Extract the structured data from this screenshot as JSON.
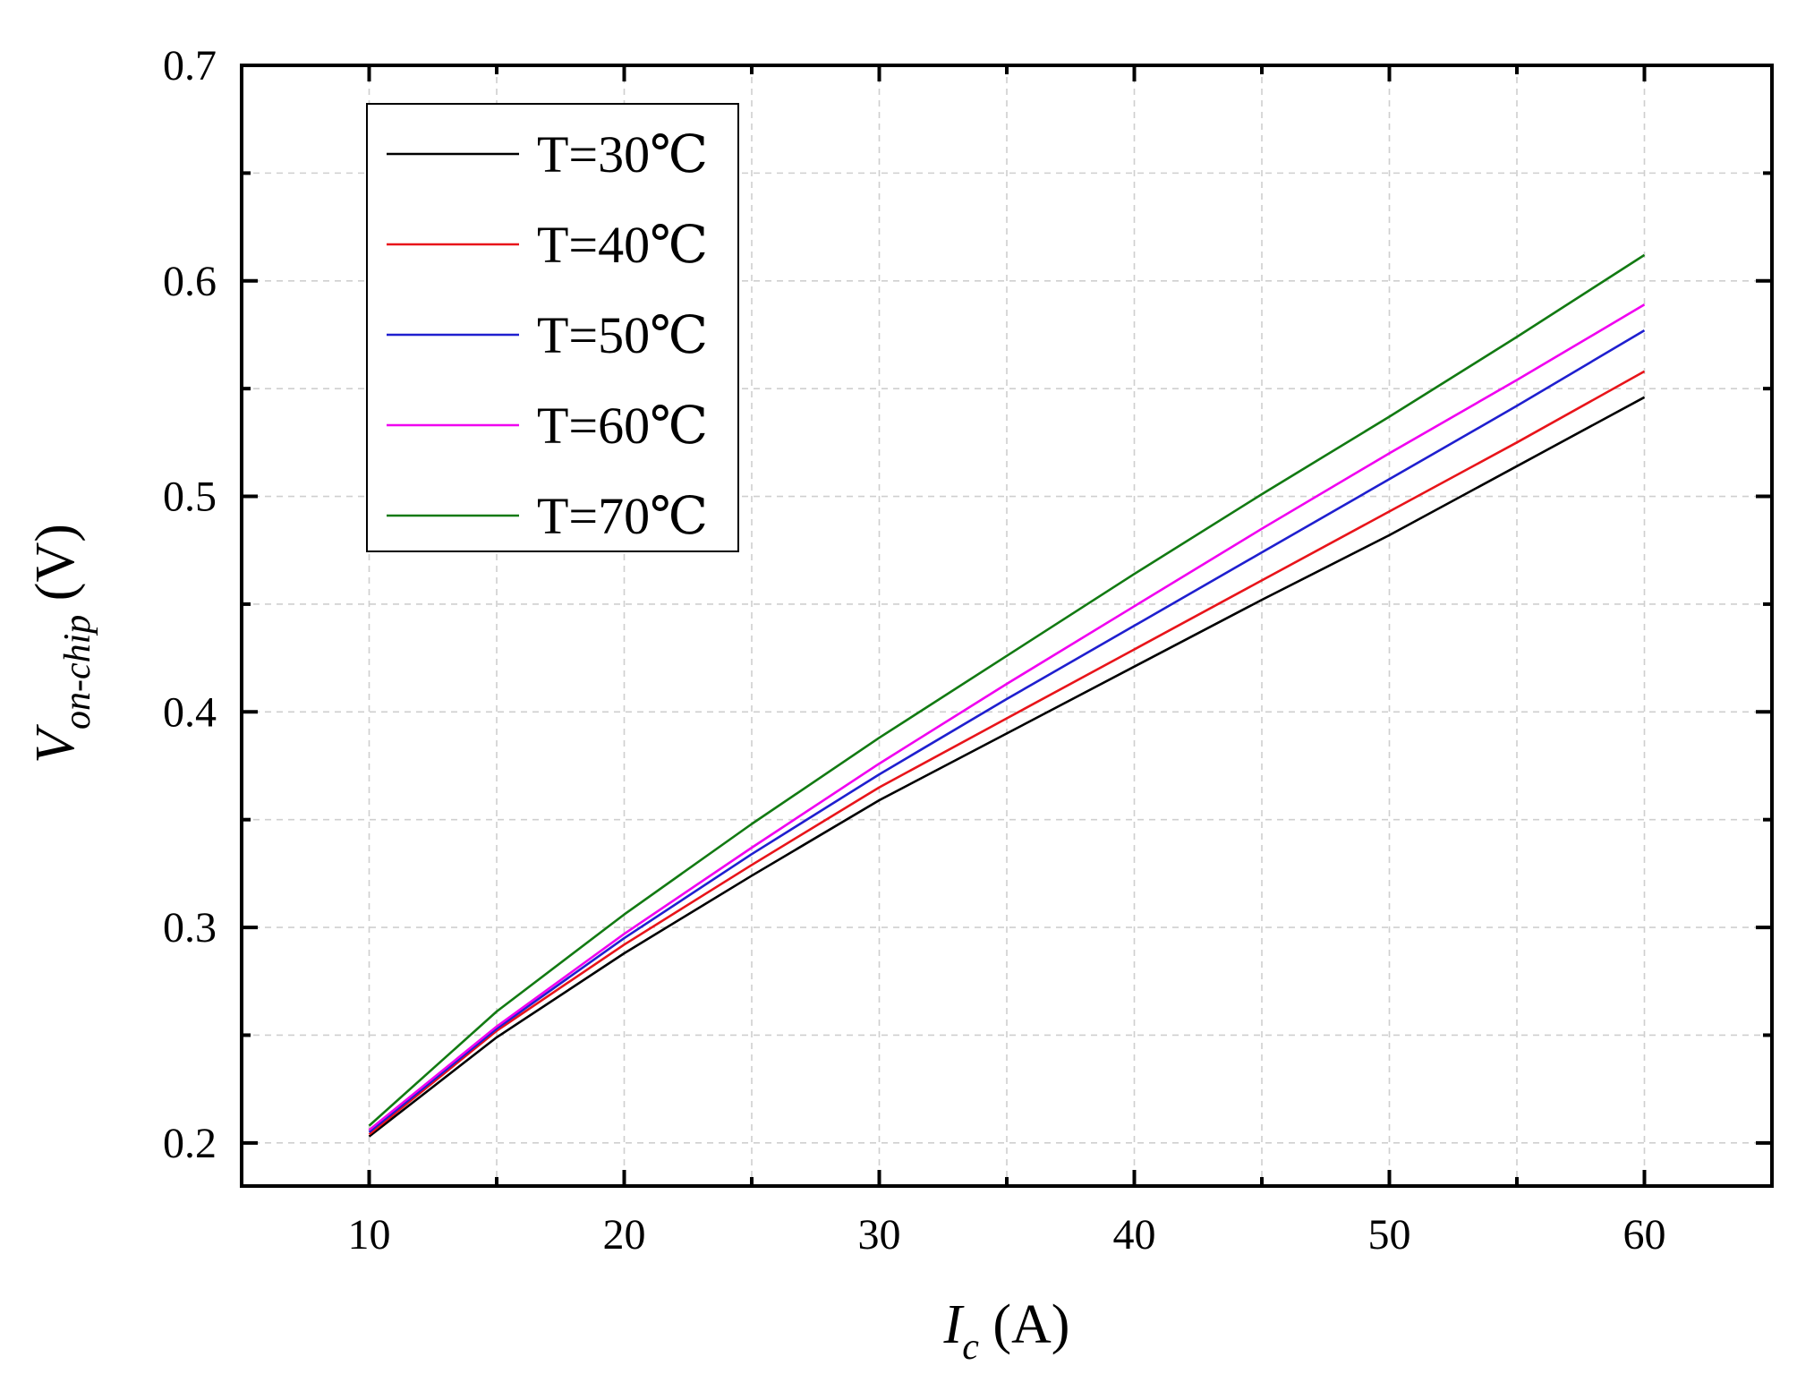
{
  "chart_data": {
    "type": "line",
    "xlabel": {
      "main": "I",
      "sub": "c",
      "unit": " (A)"
    },
    "ylabel": {
      "main": "V",
      "sub": "on-chip",
      "unit": " (V)"
    },
    "xlim": [
      5,
      65
    ],
    "ylim": [
      0.18,
      0.7
    ],
    "x_ticks": [
      10,
      20,
      30,
      40,
      50,
      60
    ],
    "x_tick_labels": [
      "10",
      "20",
      "30",
      "40",
      "50",
      "60"
    ],
    "x_minor_ticks": [
      15,
      25,
      35,
      45,
      55
    ],
    "y_ticks": [
      0.2,
      0.3,
      0.4,
      0.5,
      0.6,
      0.7
    ],
    "y_tick_labels": [
      "0.2",
      "0.3",
      "0.4",
      "0.5",
      "0.6",
      "0.7"
    ],
    "y_minor_ticks": [
      0.25,
      0.35,
      0.45,
      0.55,
      0.65
    ],
    "grid": true,
    "legend_position": "top-left",
    "x": [
      10,
      15,
      20,
      25,
      30,
      35,
      40,
      45,
      50,
      55,
      60
    ],
    "series": [
      {
        "name": "T=30℃",
        "color": "#000000",
        "values": [
          0.203,
          0.249,
          0.288,
          0.324,
          0.359,
          0.39,
          0.421,
          0.452,
          0.482,
          0.514,
          0.546
        ]
      },
      {
        "name": "T=40℃",
        "color": "#e8141a",
        "values": [
          0.204,
          0.252,
          0.292,
          0.329,
          0.365,
          0.397,
          0.429,
          0.461,
          0.493,
          0.525,
          0.558
        ]
      },
      {
        "name": "T=50℃",
        "color": "#1f1fcf",
        "values": [
          0.205,
          0.253,
          0.295,
          0.334,
          0.371,
          0.406,
          0.44,
          0.474,
          0.508,
          0.542,
          0.577
        ]
      },
      {
        "name": "T=60℃",
        "color": "#f000f0",
        "values": [
          0.206,
          0.254,
          0.297,
          0.337,
          0.376,
          0.413,
          0.449,
          0.485,
          0.52,
          0.554,
          0.589
        ]
      },
      {
        "name": "T=70℃",
        "color": "#127a12",
        "values": [
          0.208,
          0.261,
          0.306,
          0.348,
          0.388,
          0.426,
          0.464,
          0.501,
          0.537,
          0.574,
          0.612
        ]
      }
    ]
  }
}
